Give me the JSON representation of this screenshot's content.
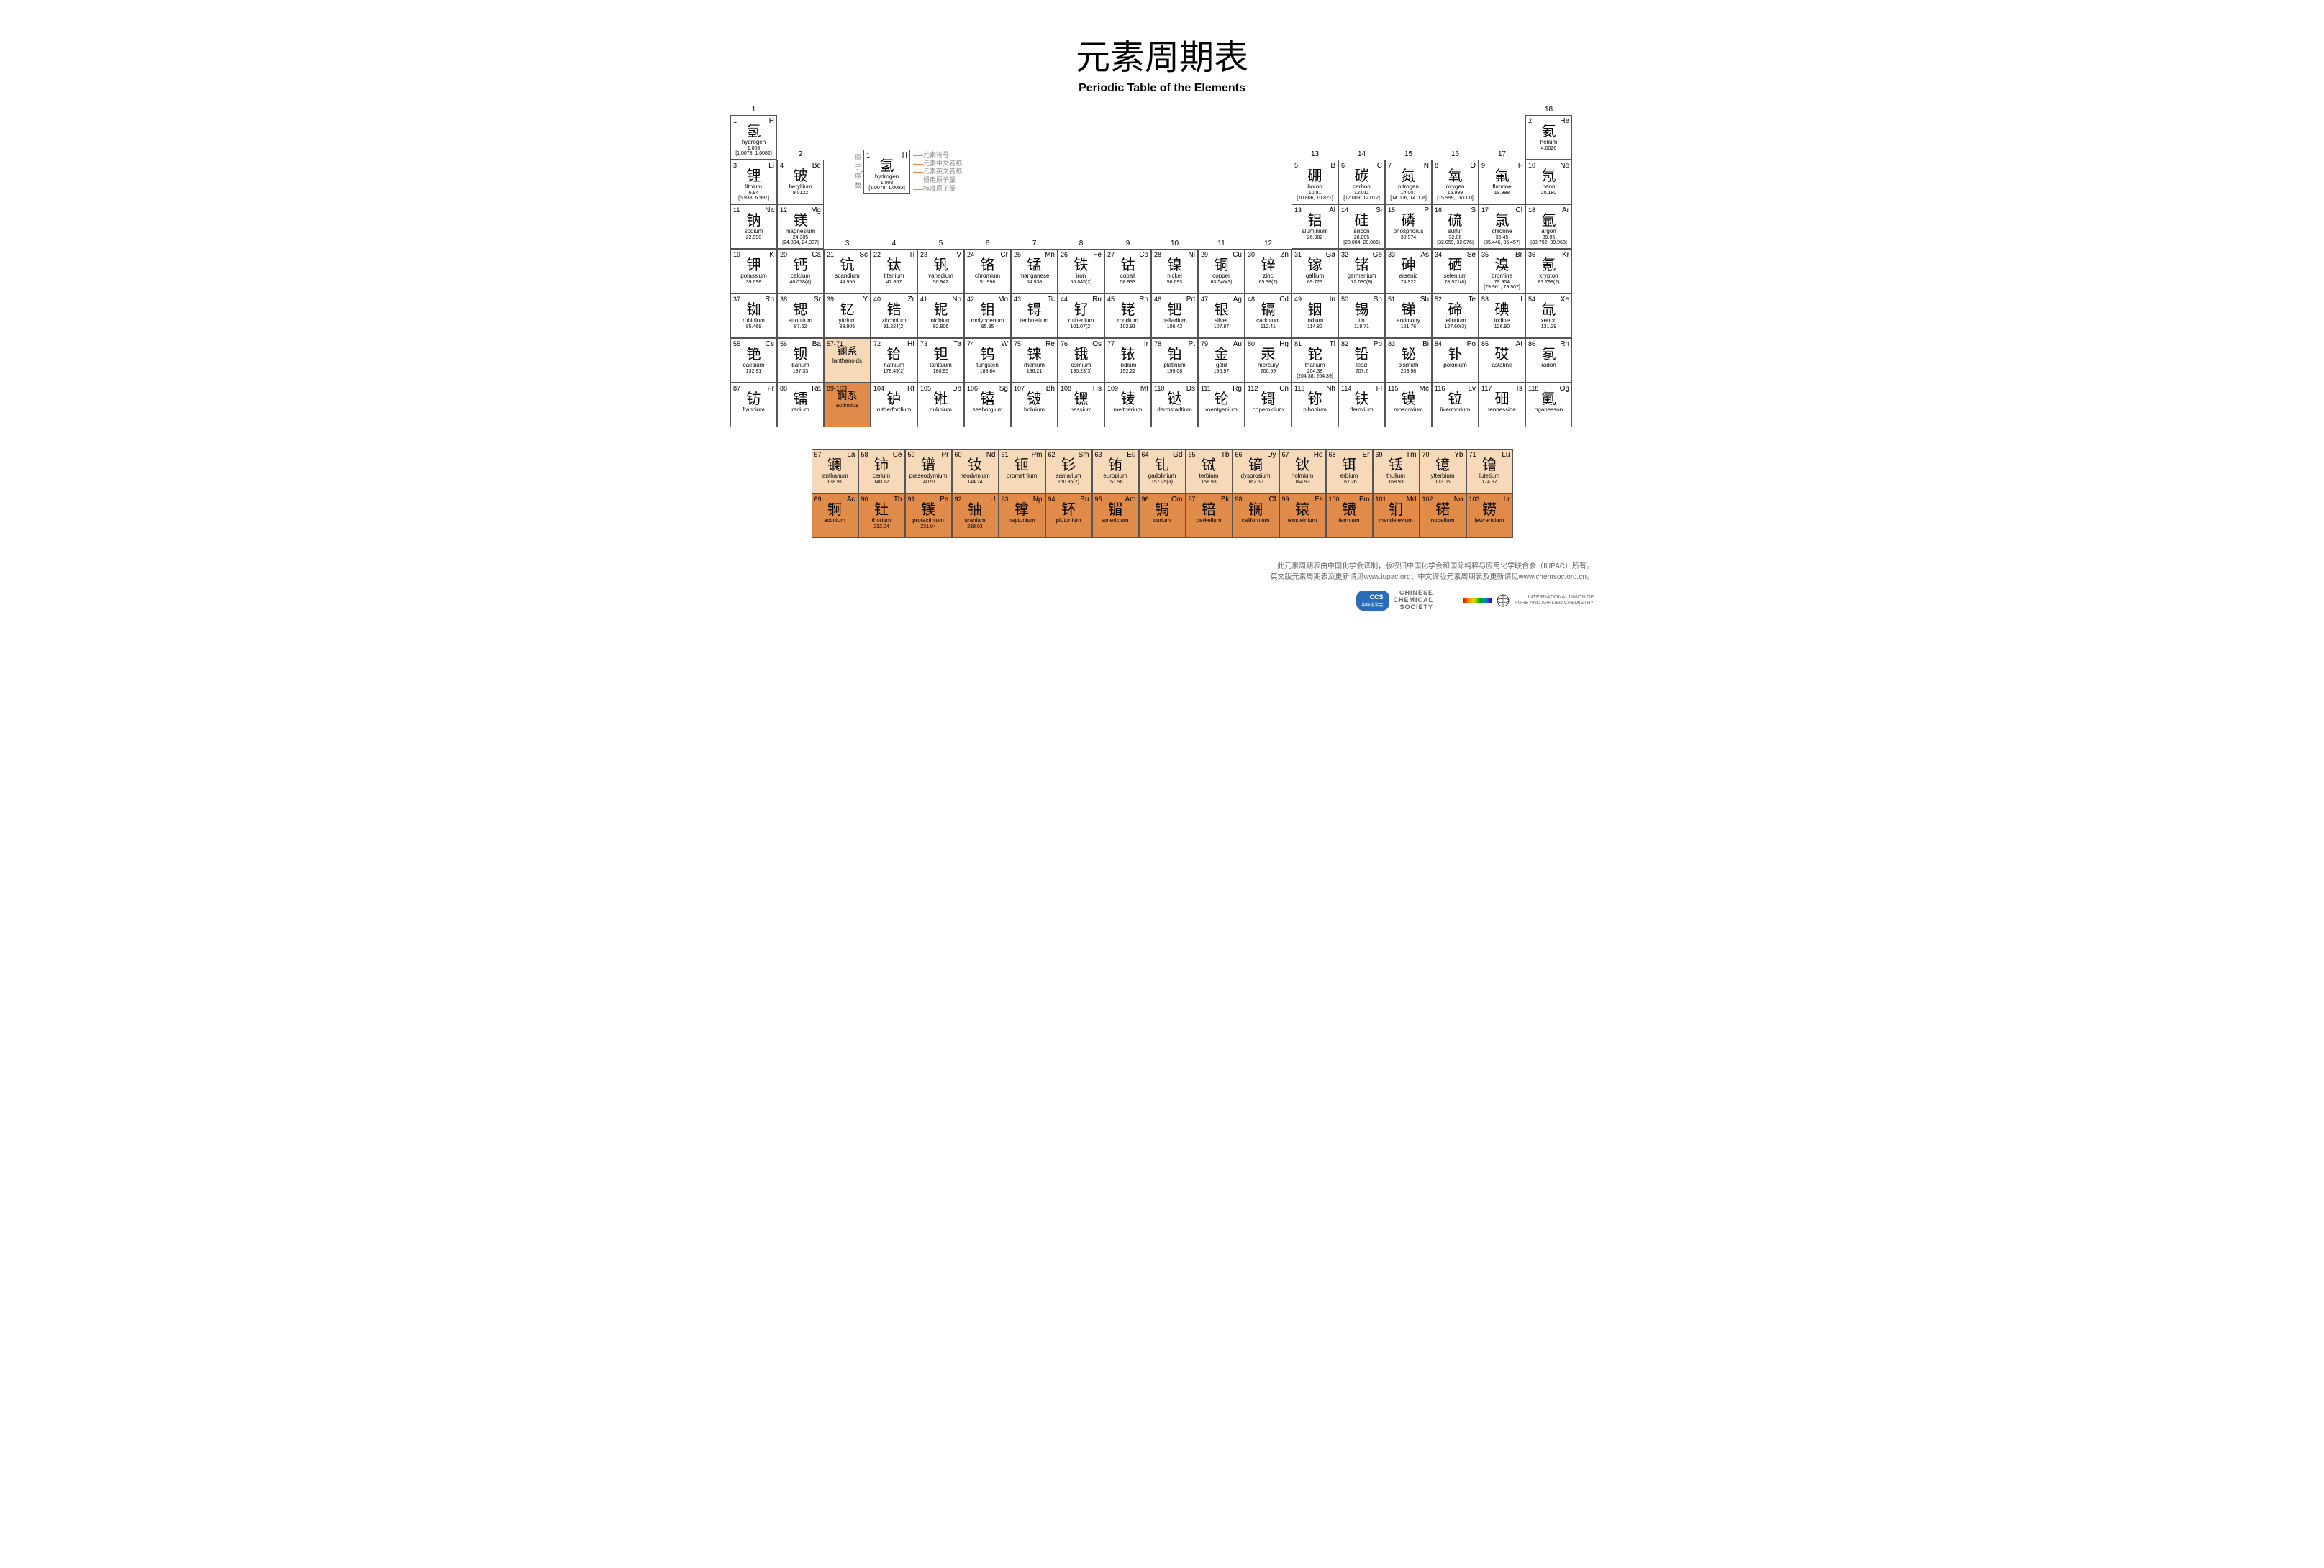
{
  "title_cn": "元素周期表",
  "title_en": "Periodic Table of the Elements",
  "colors": {
    "lanthanoid": "#f5d9b8",
    "actinoid": "#e08b4a",
    "border": "#555555",
    "bg": "#ffffff"
  },
  "group_numbers": [
    "1",
    "2",
    "3",
    "4",
    "5",
    "6",
    "7",
    "8",
    "9",
    "10",
    "11",
    "12",
    "13",
    "14",
    "15",
    "16",
    "17",
    "18"
  ],
  "legend": {
    "pre": "原子序数",
    "labels": [
      "元素符号",
      "元素中文名称",
      "元素英文名称",
      "惯用原子量",
      "标准原子量"
    ],
    "sample": {
      "n": "1",
      "s": "H",
      "cn": "氢",
      "en": "hydrogen",
      "m1": "1.008",
      "m2": "[1.0078, 1.0082]"
    }
  },
  "lan_label": {
    "range": "57-71",
    "cn": "镧系",
    "en": "lanthanoids"
  },
  "act_label": {
    "range": "89-103",
    "cn": "锕系",
    "en": "actinoids"
  },
  "elements": [
    {
      "n": 1,
      "s": "H",
      "cn": "氢",
      "en": "hydrogen",
      "m1": "1.008",
      "m2": "[1.0078, 1.0082]",
      "r": 1,
      "c": 1
    },
    {
      "n": 2,
      "s": "He",
      "cn": "氦",
      "en": "helium",
      "m1": "",
      "m2": "4.0026",
      "r": 1,
      "c": 18
    },
    {
      "n": 3,
      "s": "Li",
      "cn": "锂",
      "en": "lithium",
      "m1": "6.94",
      "m2": "[6.938, 6.997]",
      "r": 2,
      "c": 1
    },
    {
      "n": 4,
      "s": "Be",
      "cn": "铍",
      "en": "beryllium",
      "m1": "",
      "m2": "9.0122",
      "r": 2,
      "c": 2
    },
    {
      "n": 5,
      "s": "B",
      "cn": "硼",
      "en": "boron",
      "m1": "10.81",
      "m2": "[10.806, 10.821]",
      "r": 2,
      "c": 13
    },
    {
      "n": 6,
      "s": "C",
      "cn": "碳",
      "en": "carbon",
      "m1": "12.011",
      "m2": "[12.009, 12.012]",
      "r": 2,
      "c": 14
    },
    {
      "n": 7,
      "s": "N",
      "cn": "氮",
      "en": "nitrogen",
      "m1": "14.007",
      "m2": "[14.006, 14.008]",
      "r": 2,
      "c": 15
    },
    {
      "n": 8,
      "s": "O",
      "cn": "氧",
      "en": "oxygen",
      "m1": "15.999",
      "m2": "[15.999, 16.000]",
      "r": 2,
      "c": 16
    },
    {
      "n": 9,
      "s": "F",
      "cn": "氟",
      "en": "fluorine",
      "m1": "",
      "m2": "18.998",
      "r": 2,
      "c": 17
    },
    {
      "n": 10,
      "s": "Ne",
      "cn": "氖",
      "en": "neon",
      "m1": "",
      "m2": "20.180",
      "r": 2,
      "c": 18
    },
    {
      "n": 11,
      "s": "Na",
      "cn": "钠",
      "en": "sodium",
      "m1": "",
      "m2": "22.990",
      "r": 3,
      "c": 1
    },
    {
      "n": 12,
      "s": "Mg",
      "cn": "镁",
      "en": "magnesium",
      "m1": "24.305",
      "m2": "[24.304, 24.307]",
      "r": 3,
      "c": 2
    },
    {
      "n": 13,
      "s": "Al",
      "cn": "铝",
      "en": "aluminium",
      "m1": "",
      "m2": "26.982",
      "r": 3,
      "c": 13
    },
    {
      "n": 14,
      "s": "Si",
      "cn": "硅",
      "en": "silicon",
      "m1": "28.085",
      "m2": "[28.084, 28.086]",
      "r": 3,
      "c": 14
    },
    {
      "n": 15,
      "s": "P",
      "cn": "磷",
      "en": "phosphorus",
      "m1": "",
      "m2": "30.974",
      "r": 3,
      "c": 15
    },
    {
      "n": 16,
      "s": "S",
      "cn": "硫",
      "en": "sulfur",
      "m1": "32.06",
      "m2": "[32.059, 32.076]",
      "r": 3,
      "c": 16
    },
    {
      "n": 17,
      "s": "Cl",
      "cn": "氯",
      "en": "chlorine",
      "m1": "35.45",
      "m2": "[35.446, 35.457]",
      "r": 3,
      "c": 17
    },
    {
      "n": 18,
      "s": "Ar",
      "cn": "氩",
      "en": "argon",
      "m1": "39.95",
      "m2": "[39.792, 39.963]",
      "r": 3,
      "c": 18
    },
    {
      "n": 19,
      "s": "K",
      "cn": "钾",
      "en": "potassium",
      "m1": "",
      "m2": "39.098",
      "r": 4,
      "c": 1
    },
    {
      "n": 20,
      "s": "Ca",
      "cn": "钙",
      "en": "calcium",
      "m1": "",
      "m2": "40.078(4)",
      "r": 4,
      "c": 2
    },
    {
      "n": 21,
      "s": "Sc",
      "cn": "钪",
      "en": "scandium",
      "m1": "",
      "m2": "44.956",
      "r": 4,
      "c": 3
    },
    {
      "n": 22,
      "s": "Ti",
      "cn": "钛",
      "en": "titanium",
      "m1": "",
      "m2": "47.867",
      "r": 4,
      "c": 4
    },
    {
      "n": 23,
      "s": "V",
      "cn": "钒",
      "en": "vanadium",
      "m1": "",
      "m2": "50.942",
      "r": 4,
      "c": 5
    },
    {
      "n": 24,
      "s": "Cr",
      "cn": "铬",
      "en": "chromium",
      "m1": "",
      "m2": "51.996",
      "r": 4,
      "c": 6
    },
    {
      "n": 25,
      "s": "Mn",
      "cn": "锰",
      "en": "manganese",
      "m1": "",
      "m2": "54.938",
      "r": 4,
      "c": 7
    },
    {
      "n": 26,
      "s": "Fe",
      "cn": "铁",
      "en": "iron",
      "m1": "",
      "m2": "55.845(2)",
      "r": 4,
      "c": 8
    },
    {
      "n": 27,
      "s": "Co",
      "cn": "钴",
      "en": "cobalt",
      "m1": "",
      "m2": "58.933",
      "r": 4,
      "c": 9
    },
    {
      "n": 28,
      "s": "Ni",
      "cn": "镍",
      "en": "nickel",
      "m1": "",
      "m2": "58.693",
      "r": 4,
      "c": 10
    },
    {
      "n": 29,
      "s": "Cu",
      "cn": "铜",
      "en": "copper",
      "m1": "",
      "m2": "63.546(3)",
      "r": 4,
      "c": 11
    },
    {
      "n": 30,
      "s": "Zn",
      "cn": "锌",
      "en": "zinc",
      "m1": "",
      "m2": "65.38(2)",
      "r": 4,
      "c": 12
    },
    {
      "n": 31,
      "s": "Ga",
      "cn": "镓",
      "en": "gallium",
      "m1": "",
      "m2": "69.723",
      "r": 4,
      "c": 13
    },
    {
      "n": 32,
      "s": "Ge",
      "cn": "锗",
      "en": "germanium",
      "m1": "",
      "m2": "72.630(8)",
      "r": 4,
      "c": 14
    },
    {
      "n": 33,
      "s": "As",
      "cn": "砷",
      "en": "arsenic",
      "m1": "",
      "m2": "74.922",
      "r": 4,
      "c": 15
    },
    {
      "n": 34,
      "s": "Se",
      "cn": "硒",
      "en": "selenium",
      "m1": "",
      "m2": "78.971(8)",
      "r": 4,
      "c": 16
    },
    {
      "n": 35,
      "s": "Br",
      "cn": "溴",
      "en": "bromine",
      "m1": "79.904",
      "m2": "[79.901, 79.907]",
      "r": 4,
      "c": 17
    },
    {
      "n": 36,
      "s": "Kr",
      "cn": "氪",
      "en": "krypton",
      "m1": "",
      "m2": "83.798(2)",
      "r": 4,
      "c": 18
    },
    {
      "n": 37,
      "s": "Rb",
      "cn": "铷",
      "en": "rubidium",
      "m1": "",
      "m2": "85.468",
      "r": 5,
      "c": 1
    },
    {
      "n": 38,
      "s": "Sr",
      "cn": "锶",
      "en": "strontium",
      "m1": "",
      "m2": "87.62",
      "r": 5,
      "c": 2
    },
    {
      "n": 39,
      "s": "Y",
      "cn": "钇",
      "en": "yttrium",
      "m1": "",
      "m2": "88.906",
      "r": 5,
      "c": 3
    },
    {
      "n": 40,
      "s": "Zr",
      "cn": "锆",
      "en": "zirconium",
      "m1": "",
      "m2": "91.224(2)",
      "r": 5,
      "c": 4
    },
    {
      "n": 41,
      "s": "Nb",
      "cn": "铌",
      "en": "niobium",
      "m1": "",
      "m2": "92.906",
      "r": 5,
      "c": 5
    },
    {
      "n": 42,
      "s": "Mo",
      "cn": "钼",
      "en": "molybdenum",
      "m1": "",
      "m2": "95.95",
      "r": 5,
      "c": 6
    },
    {
      "n": 43,
      "s": "Tc",
      "cn": "锝",
      "en": "technetium",
      "m1": "",
      "m2": "",
      "r": 5,
      "c": 7
    },
    {
      "n": 44,
      "s": "Ru",
      "cn": "钌",
      "en": "ruthenium",
      "m1": "",
      "m2": "101.07(2)",
      "r": 5,
      "c": 8
    },
    {
      "n": 45,
      "s": "Rh",
      "cn": "铑",
      "en": "rhodium",
      "m1": "",
      "m2": "102.91",
      "r": 5,
      "c": 9
    },
    {
      "n": 46,
      "s": "Pd",
      "cn": "钯",
      "en": "palladium",
      "m1": "",
      "m2": "106.42",
      "r": 5,
      "c": 10
    },
    {
      "n": 47,
      "s": "Ag",
      "cn": "银",
      "en": "silver",
      "m1": "",
      "m2": "107.87",
      "r": 5,
      "c": 11
    },
    {
      "n": 48,
      "s": "Cd",
      "cn": "镉",
      "en": "cadmium",
      "m1": "",
      "m2": "112.41",
      "r": 5,
      "c": 12
    },
    {
      "n": 49,
      "s": "In",
      "cn": "铟",
      "en": "indium",
      "m1": "",
      "m2": "114.82",
      "r": 5,
      "c": 13
    },
    {
      "n": 50,
      "s": "Sn",
      "cn": "锡",
      "en": "tin",
      "m1": "",
      "m2": "118.71",
      "r": 5,
      "c": 14
    },
    {
      "n": 51,
      "s": "Sb",
      "cn": "锑",
      "en": "antimony",
      "m1": "",
      "m2": "121.76",
      "r": 5,
      "c": 15
    },
    {
      "n": 52,
      "s": "Te",
      "cn": "碲",
      "en": "tellurium",
      "m1": "",
      "m2": "127.60(3)",
      "r": 5,
      "c": 16
    },
    {
      "n": 53,
      "s": "I",
      "cn": "碘",
      "en": "iodine",
      "m1": "",
      "m2": "126.90",
      "r": 5,
      "c": 17
    },
    {
      "n": 54,
      "s": "Xe",
      "cn": "氙",
      "en": "xenon",
      "m1": "",
      "m2": "131.29",
      "r": 5,
      "c": 18
    },
    {
      "n": 55,
      "s": "Cs",
      "cn": "铯",
      "en": "caesium",
      "m1": "",
      "m2": "132.91",
      "r": 6,
      "c": 1
    },
    {
      "n": 56,
      "s": "Ba",
      "cn": "钡",
      "en": "barium",
      "m1": "",
      "m2": "137.33",
      "r": 6,
      "c": 2
    },
    {
      "n": 72,
      "s": "Hf",
      "cn": "铪",
      "en": "hafnium",
      "m1": "",
      "m2": "178.49(2)",
      "r": 6,
      "c": 4
    },
    {
      "n": 73,
      "s": "Ta",
      "cn": "钽",
      "en": "tantalum",
      "m1": "",
      "m2": "180.95",
      "r": 6,
      "c": 5
    },
    {
      "n": 74,
      "s": "W",
      "cn": "钨",
      "en": "tungsten",
      "m1": "",
      "m2": "183.84",
      "r": 6,
      "c": 6
    },
    {
      "n": 75,
      "s": "Re",
      "cn": "铼",
      "en": "rhenium",
      "m1": "",
      "m2": "186.21",
      "r": 6,
      "c": 7
    },
    {
      "n": 76,
      "s": "Os",
      "cn": "锇",
      "en": "osmium",
      "m1": "",
      "m2": "190.23(3)",
      "r": 6,
      "c": 8
    },
    {
      "n": 77,
      "s": "Ir",
      "cn": "铱",
      "en": "iridium",
      "m1": "",
      "m2": "192.22",
      "r": 6,
      "c": 9
    },
    {
      "n": 78,
      "s": "Pt",
      "cn": "铂",
      "en": "platinum",
      "m1": "",
      "m2": "195.08",
      "r": 6,
      "c": 10
    },
    {
      "n": 79,
      "s": "Au",
      "cn": "金",
      "en": "gold",
      "m1": "",
      "m2": "196.97",
      "r": 6,
      "c": 11
    },
    {
      "n": 80,
      "s": "Hg",
      "cn": "汞",
      "en": "mercury",
      "m1": "",
      "m2": "200.59",
      "r": 6,
      "c": 12
    },
    {
      "n": 81,
      "s": "Tl",
      "cn": "铊",
      "en": "thallium",
      "m1": "204.38",
      "m2": "[204.38, 204.39]",
      "r": 6,
      "c": 13
    },
    {
      "n": 82,
      "s": "Pb",
      "cn": "铅",
      "en": "lead",
      "m1": "",
      "m2": "207.2",
      "r": 6,
      "c": 14
    },
    {
      "n": 83,
      "s": "Bi",
      "cn": "铋",
      "en": "bismuth",
      "m1": "",
      "m2": "208.98",
      "r": 6,
      "c": 15
    },
    {
      "n": 84,
      "s": "Po",
      "cn": "钋",
      "en": "polonium",
      "m1": "",
      "m2": "",
      "r": 6,
      "c": 16
    },
    {
      "n": 85,
      "s": "At",
      "cn": "砹",
      "en": "astatine",
      "m1": "",
      "m2": "",
      "r": 6,
      "c": 17
    },
    {
      "n": 86,
      "s": "Rn",
      "cn": "氡",
      "en": "radon",
      "m1": "",
      "m2": "",
      "r": 6,
      "c": 18
    },
    {
      "n": 87,
      "s": "Fr",
      "cn": "钫",
      "en": "francium",
      "m1": "",
      "m2": "",
      "r": 7,
      "c": 1
    },
    {
      "n": 88,
      "s": "Ra",
      "cn": "镭",
      "en": "radium",
      "m1": "",
      "m2": "",
      "r": 7,
      "c": 2
    },
    {
      "n": 104,
      "s": "Rf",
      "cn": "𬬻",
      "en": "rutherfordium",
      "m1": "",
      "m2": "",
      "r": 7,
      "c": 4
    },
    {
      "n": 105,
      "s": "Db",
      "cn": "𬭊",
      "en": "dubnium",
      "m1": "",
      "m2": "",
      "r": 7,
      "c": 5
    },
    {
      "n": 106,
      "s": "Sg",
      "cn": "𬭳",
      "en": "seaborgium",
      "m1": "",
      "m2": "",
      "r": 7,
      "c": 6
    },
    {
      "n": 107,
      "s": "Bh",
      "cn": "𬭛",
      "en": "bohrium",
      "m1": "",
      "m2": "",
      "r": 7,
      "c": 7
    },
    {
      "n": 108,
      "s": "Hs",
      "cn": "𬭶",
      "en": "hassium",
      "m1": "",
      "m2": "",
      "r": 7,
      "c": 8
    },
    {
      "n": 109,
      "s": "Mt",
      "cn": "鿏",
      "en": "meitnerium",
      "m1": "",
      "m2": "",
      "r": 7,
      "c": 9
    },
    {
      "n": 110,
      "s": "Ds",
      "cn": "𫟼",
      "en": "darmstadtium",
      "m1": "",
      "m2": "",
      "r": 7,
      "c": 10
    },
    {
      "n": 111,
      "s": "Rg",
      "cn": "𬬭",
      "en": "roentgenium",
      "m1": "",
      "m2": "",
      "r": 7,
      "c": 11
    },
    {
      "n": 112,
      "s": "Cn",
      "cn": "鿔",
      "en": "copernicium",
      "m1": "",
      "m2": "",
      "r": 7,
      "c": 12
    },
    {
      "n": 113,
      "s": "Nh",
      "cn": "鿭",
      "en": "nihonium",
      "m1": "",
      "m2": "",
      "r": 7,
      "c": 13
    },
    {
      "n": 114,
      "s": "Fl",
      "cn": "𫓧",
      "en": "flerovium",
      "m1": "",
      "m2": "",
      "r": 7,
      "c": 14
    },
    {
      "n": 115,
      "s": "Mc",
      "cn": "镆",
      "en": "moscovium",
      "m1": "",
      "m2": "",
      "r": 7,
      "c": 15
    },
    {
      "n": 116,
      "s": "Lv",
      "cn": "𫟷",
      "en": "livermorium",
      "m1": "",
      "m2": "",
      "r": 7,
      "c": 16
    },
    {
      "n": 117,
      "s": "Ts",
      "cn": "鿬",
      "en": "tennessine",
      "m1": "",
      "m2": "",
      "r": 7,
      "c": 17
    },
    {
      "n": 118,
      "s": "Og",
      "cn": "鿫",
      "en": "oganesson",
      "m1": "",
      "m2": "",
      "r": 7,
      "c": 18
    }
  ],
  "lanthanoids": [
    {
      "n": 57,
      "s": "La",
      "cn": "镧",
      "en": "lanthanum",
      "m2": "138.91"
    },
    {
      "n": 58,
      "s": "Ce",
      "cn": "铈",
      "en": "cerium",
      "m2": "140.12"
    },
    {
      "n": 59,
      "s": "Pr",
      "cn": "镨",
      "en": "praseodymium",
      "m2": "140.91"
    },
    {
      "n": 60,
      "s": "Nd",
      "cn": "钕",
      "en": "neodymium",
      "m2": "144.24"
    },
    {
      "n": 61,
      "s": "Pm",
      "cn": "钷",
      "en": "promethium",
      "m2": ""
    },
    {
      "n": 62,
      "s": "Sm",
      "cn": "钐",
      "en": "samarium",
      "m2": "150.36(2)"
    },
    {
      "n": 63,
      "s": "Eu",
      "cn": "铕",
      "en": "europium",
      "m2": "151.96"
    },
    {
      "n": 64,
      "s": "Gd",
      "cn": "钆",
      "en": "gadolinium",
      "m2": "157.25(3)"
    },
    {
      "n": 65,
      "s": "Tb",
      "cn": "铽",
      "en": "terbium",
      "m2": "158.93"
    },
    {
      "n": 66,
      "s": "Dy",
      "cn": "镝",
      "en": "dysprosium",
      "m2": "162.50"
    },
    {
      "n": 67,
      "s": "Ho",
      "cn": "钬",
      "en": "holmium",
      "m2": "164.93"
    },
    {
      "n": 68,
      "s": "Er",
      "cn": "铒",
      "en": "erbium",
      "m2": "167.26"
    },
    {
      "n": 69,
      "s": "Tm",
      "cn": "铥",
      "en": "thulium",
      "m2": "168.93"
    },
    {
      "n": 70,
      "s": "Yb",
      "cn": "镱",
      "en": "ytterbium",
      "m2": "173.05"
    },
    {
      "n": 71,
      "s": "Lu",
      "cn": "镥",
      "en": "lutetium",
      "m2": "174.97"
    }
  ],
  "actinoids": [
    {
      "n": 89,
      "s": "Ac",
      "cn": "锕",
      "en": "actinium",
      "m2": ""
    },
    {
      "n": 90,
      "s": "Th",
      "cn": "钍",
      "en": "thorium",
      "m2": "232.04"
    },
    {
      "n": 91,
      "s": "Pa",
      "cn": "镤",
      "en": "protactinium",
      "m2": "231.04"
    },
    {
      "n": 92,
      "s": "U",
      "cn": "铀",
      "en": "uranium",
      "m2": "238.03"
    },
    {
      "n": 93,
      "s": "Np",
      "cn": "镎",
      "en": "neptunium",
      "m2": ""
    },
    {
      "n": 94,
      "s": "Pu",
      "cn": "钚",
      "en": "plutonium",
      "m2": ""
    },
    {
      "n": 95,
      "s": "Am",
      "cn": "镅",
      "en": "americium",
      "m2": ""
    },
    {
      "n": 96,
      "s": "Cm",
      "cn": "锔",
      "en": "curium",
      "m2": ""
    },
    {
      "n": 97,
      "s": "Bk",
      "cn": "锫",
      "en": "berkelium",
      "m2": ""
    },
    {
      "n": 98,
      "s": "Cf",
      "cn": "锎",
      "en": "californium",
      "m2": ""
    },
    {
      "n": 99,
      "s": "Es",
      "cn": "锿",
      "en": "einsteinium",
      "m2": ""
    },
    {
      "n": 100,
      "s": "Fm",
      "cn": "镄",
      "en": "fermium",
      "m2": ""
    },
    {
      "n": 101,
      "s": "Md",
      "cn": "钔",
      "en": "mendelevium",
      "m2": ""
    },
    {
      "n": 102,
      "s": "No",
      "cn": "锘",
      "en": "nobelium",
      "m2": ""
    },
    {
      "n": 103,
      "s": "Lr",
      "cn": "铹",
      "en": "lawrencium",
      "m2": ""
    }
  ],
  "footer": {
    "line1": "此元素周期表由中国化学会译制，版权归中国化学会和国际纯粹与应用化学联合会（IUPAC）所有。",
    "line2": "英文版元素周期表及更新请见www.iupac.org；中文译版元素周期表及更新请见www.chemsoc.org.cn。",
    "ccs": "CCS",
    "ccs_sub": "中国化学会",
    "ccs_en": "CHINESE\nCHEMICAL\nSOCIETY",
    "iupac": "INTERNATIONAL UNION OF\nPURE AND APPLIED CHEMISTRY"
  }
}
